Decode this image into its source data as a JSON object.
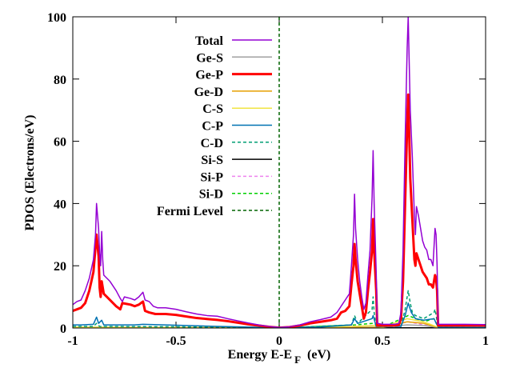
{
  "chart_data": {
    "type": "line",
    "xlabel_main": "Energy E-E",
    "xlabel_sub": "F",
    "xlabel_unit": "(eV)",
    "ylabel": "PDOS (Electrons/eV)",
    "xlim": [
      -1,
      1
    ],
    "ylim": [
      0,
      100
    ],
    "xticks": [
      -1,
      -0.5,
      0,
      0.5,
      1
    ],
    "xtick_labels": [
      "-1",
      "-0.5",
      "0",
      "0.5",
      "1"
    ],
    "yticks": [
      0,
      20,
      40,
      60,
      80,
      100
    ],
    "ytick_labels": [
      "0",
      "20",
      "40",
      "60",
      "80",
      "100"
    ],
    "legend_position": "top-center",
    "fermi_level": 0,
    "series": [
      {
        "name": "Total",
        "color": "#9400d3",
        "width": 1.5,
        "dash": "",
        "points": [
          [
            -1,
            7.5
          ],
          [
            -0.98,
            8.5
          ],
          [
            -0.96,
            9
          ],
          [
            -0.94,
            12
          ],
          [
            -0.92,
            16
          ],
          [
            -0.9,
            22
          ],
          [
            -0.89,
            30
          ],
          [
            -0.885,
            40
          ],
          [
            -0.875,
            32
          ],
          [
            -0.87,
            24
          ],
          [
            -0.865,
            20
          ],
          [
            -0.86,
            31
          ],
          [
            -0.855,
            22
          ],
          [
            -0.85,
            17
          ],
          [
            -0.82,
            15
          ],
          [
            -0.79,
            12
          ],
          [
            -0.77,
            9.5
          ],
          [
            -0.76,
            8.5
          ],
          [
            -0.75,
            10
          ],
          [
            -0.72,
            9.5
          ],
          [
            -0.7,
            9
          ],
          [
            -0.68,
            10
          ],
          [
            -0.66,
            11.5
          ],
          [
            -0.65,
            9
          ],
          [
            -0.63,
            8.5
          ],
          [
            -0.61,
            7
          ],
          [
            -0.59,
            6.5
          ],
          [
            -0.55,
            6.5
          ],
          [
            -0.5,
            6
          ],
          [
            -0.45,
            5.2
          ],
          [
            -0.4,
            4.5
          ],
          [
            -0.35,
            4
          ],
          [
            -0.3,
            3.8
          ],
          [
            -0.25,
            3
          ],
          [
            -0.2,
            2.3
          ],
          [
            -0.15,
            1.6
          ],
          [
            -0.1,
            1
          ],
          [
            -0.05,
            0.5
          ],
          [
            0,
            0.2
          ],
          [
            0.05,
            0.4
          ],
          [
            0.1,
            1
          ],
          [
            0.15,
            2
          ],
          [
            0.2,
            2.7
          ],
          [
            0.25,
            3.5
          ],
          [
            0.28,
            5
          ],
          [
            0.3,
            7
          ],
          [
            0.32,
            9
          ],
          [
            0.34,
            11
          ],
          [
            0.35,
            20
          ],
          [
            0.36,
            30
          ],
          [
            0.365,
            43
          ],
          [
            0.37,
            32
          ],
          [
            0.38,
            22
          ],
          [
            0.39,
            15
          ],
          [
            0.4,
            10
          ],
          [
            0.41,
            6
          ],
          [
            0.42,
            8
          ],
          [
            0.43,
            17
          ],
          [
            0.44,
            25
          ],
          [
            0.45,
            42
          ],
          [
            0.455,
            57
          ],
          [
            0.46,
            40
          ],
          [
            0.47,
            18
          ],
          [
            0.475,
            1.5
          ],
          [
            0.5,
            1.2
          ],
          [
            0.56,
            1.2
          ],
          [
            0.58,
            1.5
          ],
          [
            0.59,
            5
          ],
          [
            0.6,
            25
          ],
          [
            0.61,
            60
          ],
          [
            0.62,
            90
          ],
          [
            0.625,
            100
          ],
          [
            0.63,
            85
          ],
          [
            0.635,
            70
          ],
          [
            0.645,
            55
          ],
          [
            0.655,
            36
          ],
          [
            0.66,
            30
          ],
          [
            0.665,
            39
          ],
          [
            0.675,
            36
          ],
          [
            0.685,
            32
          ],
          [
            0.695,
            28
          ],
          [
            0.705,
            26
          ],
          [
            0.715,
            25
          ],
          [
            0.725,
            22
          ],
          [
            0.735,
            22
          ],
          [
            0.745,
            20
          ],
          [
            0.75,
            26
          ],
          [
            0.755,
            32
          ],
          [
            0.76,
            30
          ],
          [
            0.765,
            20
          ],
          [
            0.77,
            1.2
          ],
          [
            0.8,
            1.2
          ],
          [
            0.9,
            1.2
          ],
          [
            1,
            1.1
          ]
        ]
      },
      {
        "name": "Ge-S",
        "color": "#a0a0a0",
        "width": 1.5,
        "dash": "",
        "points": [
          [
            -1,
            0.3
          ],
          [
            -0.5,
            0.2
          ],
          [
            0,
            0
          ],
          [
            0.5,
            0.3
          ],
          [
            0.62,
            1
          ],
          [
            0.7,
            0.8
          ],
          [
            0.77,
            0.2
          ],
          [
            1,
            0.1
          ]
        ]
      },
      {
        "name": "Ge-P",
        "color": "#ff0000",
        "width": 3,
        "dash": "",
        "points": [
          [
            -1,
            5.5
          ],
          [
            -0.98,
            6
          ],
          [
            -0.96,
            6.5
          ],
          [
            -0.94,
            8
          ],
          [
            -0.92,
            12
          ],
          [
            -0.9,
            18
          ],
          [
            -0.89,
            26
          ],
          [
            -0.885,
            30
          ],
          [
            -0.875,
            23
          ],
          [
            -0.87,
            13
          ],
          [
            -0.865,
            10
          ],
          [
            -0.86,
            15
          ],
          [
            -0.855,
            13
          ],
          [
            -0.85,
            11
          ],
          [
            -0.82,
            9
          ],
          [
            -0.79,
            7
          ],
          [
            -0.78,
            6.5
          ],
          [
            -0.77,
            6
          ],
          [
            -0.76,
            8
          ],
          [
            -0.72,
            7.5
          ],
          [
            -0.7,
            7
          ],
          [
            -0.68,
            7.5
          ],
          [
            -0.66,
            8.5
          ],
          [
            -0.65,
            5.5
          ],
          [
            -0.63,
            5
          ],
          [
            -0.6,
            4.5
          ],
          [
            -0.55,
            4.5
          ],
          [
            -0.5,
            4.2
          ],
          [
            -0.45,
            3.7
          ],
          [
            -0.4,
            3.2
          ],
          [
            -0.35,
            2.9
          ],
          [
            -0.3,
            2.6
          ],
          [
            -0.25,
            2.2
          ],
          [
            -0.2,
            1.7
          ],
          [
            -0.15,
            1.2
          ],
          [
            -0.1,
            0.8
          ],
          [
            -0.05,
            0.4
          ],
          [
            0,
            0.1
          ],
          [
            0.05,
            0.3
          ],
          [
            0.1,
            0.8
          ],
          [
            0.15,
            1.5
          ],
          [
            0.2,
            2
          ],
          [
            0.25,
            2.5
          ],
          [
            0.28,
            3
          ],
          [
            0.3,
            5
          ],
          [
            0.32,
            5.5
          ],
          [
            0.34,
            7
          ],
          [
            0.35,
            14
          ],
          [
            0.36,
            20
          ],
          [
            0.365,
            27
          ],
          [
            0.37,
            22
          ],
          [
            0.38,
            15
          ],
          [
            0.39,
            11
          ],
          [
            0.4,
            7
          ],
          [
            0.41,
            3
          ],
          [
            0.42,
            5
          ],
          [
            0.43,
            12
          ],
          [
            0.44,
            18
          ],
          [
            0.45,
            25
          ],
          [
            0.455,
            35
          ],
          [
            0.46,
            25
          ],
          [
            0.47,
            12
          ],
          [
            0.475,
            0.8
          ],
          [
            0.5,
            0.8
          ],
          [
            0.56,
            0.8
          ],
          [
            0.58,
            1
          ],
          [
            0.59,
            3
          ],
          [
            0.6,
            15
          ],
          [
            0.61,
            40
          ],
          [
            0.62,
            65
          ],
          [
            0.625,
            75
          ],
          [
            0.63,
            62
          ],
          [
            0.635,
            48
          ],
          [
            0.645,
            35
          ],
          [
            0.655,
            22
          ],
          [
            0.66,
            20
          ],
          [
            0.665,
            24
          ],
          [
            0.675,
            22
          ],
          [
            0.685,
            20
          ],
          [
            0.695,
            18
          ],
          [
            0.705,
            17
          ],
          [
            0.715,
            16
          ],
          [
            0.725,
            14
          ],
          [
            0.735,
            14
          ],
          [
            0.745,
            13
          ],
          [
            0.75,
            15
          ],
          [
            0.755,
            17
          ],
          [
            0.76,
            16
          ],
          [
            0.765,
            12
          ],
          [
            0.77,
            0.8
          ],
          [
            0.8,
            0.8
          ],
          [
            0.9,
            0.8
          ],
          [
            1,
            0.8
          ]
        ]
      },
      {
        "name": "Ge-D",
        "color": "#e69f00",
        "width": 1.5,
        "dash": "",
        "points": [
          [
            -1,
            0.2
          ],
          [
            -0.5,
            0.2
          ],
          [
            0,
            0
          ],
          [
            0.5,
            0.2
          ],
          [
            0.62,
            2
          ],
          [
            0.7,
            1.5
          ],
          [
            0.77,
            0.2
          ],
          [
            1,
            0.1
          ]
        ]
      },
      {
        "name": "C-S",
        "color": "#f0e442",
        "width": 1.5,
        "dash": "",
        "points": [
          [
            -1,
            0.3
          ],
          [
            -0.5,
            0.2
          ],
          [
            0,
            0
          ],
          [
            0.36,
            0.5
          ],
          [
            0.46,
            0.8
          ],
          [
            0.5,
            0.2
          ],
          [
            0.62,
            3
          ],
          [
            0.7,
            2
          ],
          [
            0.77,
            0.2
          ],
          [
            1,
            0.1
          ]
        ]
      },
      {
        "name": "C-P",
        "color": "#0072b2",
        "width": 1.5,
        "dash": "",
        "points": [
          [
            -1,
            1
          ],
          [
            -0.96,
            1
          ],
          [
            -0.9,
            1.2
          ],
          [
            -0.885,
            3.5
          ],
          [
            -0.875,
            1.5
          ],
          [
            -0.86,
            2.5
          ],
          [
            -0.85,
            1
          ],
          [
            -0.7,
            1
          ],
          [
            -0.66,
            1.2
          ],
          [
            -0.5,
            0.9
          ],
          [
            -0.3,
            0.5
          ],
          [
            0,
            0.1
          ],
          [
            0.2,
            0.3
          ],
          [
            0.35,
            1
          ],
          [
            0.365,
            3
          ],
          [
            0.38,
            1.5
          ],
          [
            0.45,
            3
          ],
          [
            0.455,
            4
          ],
          [
            0.47,
            0.5
          ],
          [
            0.59,
            0.5
          ],
          [
            0.61,
            4
          ],
          [
            0.625,
            8
          ],
          [
            0.64,
            5
          ],
          [
            0.66,
            3
          ],
          [
            0.7,
            2.5
          ],
          [
            0.75,
            3
          ],
          [
            0.77,
            0.3
          ],
          [
            1,
            0.2
          ]
        ]
      },
      {
        "name": "C-D",
        "color": "#009e73",
        "width": 1.5,
        "dash": "4,3",
        "points": [
          [
            -1,
            0.5
          ],
          [
            -0.9,
            0.5
          ],
          [
            -0.885,
            1.5
          ],
          [
            -0.87,
            0.5
          ],
          [
            -0.5,
            0.4
          ],
          [
            0,
            0
          ],
          [
            0.35,
            1
          ],
          [
            0.365,
            4
          ],
          [
            0.38,
            1.5
          ],
          [
            0.45,
            6
          ],
          [
            0.455,
            10
          ],
          [
            0.46,
            5
          ],
          [
            0.47,
            0.5
          ],
          [
            0.59,
            0.5
          ],
          [
            0.61,
            6
          ],
          [
            0.625,
            12
          ],
          [
            0.635,
            8
          ],
          [
            0.645,
            5
          ],
          [
            0.66,
            4
          ],
          [
            0.7,
            3
          ],
          [
            0.75,
            5
          ],
          [
            0.755,
            6
          ],
          [
            0.77,
            0.3
          ],
          [
            1,
            0.2
          ]
        ]
      },
      {
        "name": "Si-S",
        "color": "#000000",
        "width": 1.5,
        "dash": "",
        "points": [
          [
            -1,
            0.1
          ],
          [
            0,
            0
          ],
          [
            1,
            0.1
          ]
        ]
      },
      {
        "name": "Si-P",
        "color": "#ee82ee",
        "width": 1.5,
        "dash": "4,3",
        "points": [
          [
            -1,
            0.2
          ],
          [
            -0.5,
            0.2
          ],
          [
            0,
            0
          ],
          [
            0.365,
            0.6
          ],
          [
            0.455,
            0.8
          ],
          [
            0.5,
            0.2
          ],
          [
            0.625,
            2
          ],
          [
            0.7,
            1
          ],
          [
            0.77,
            0.2
          ],
          [
            1,
            0.1
          ]
        ]
      },
      {
        "name": "Si-D",
        "color": "#00d000",
        "width": 1.5,
        "dash": "4,3",
        "points": [
          [
            -1,
            0.2
          ],
          [
            -0.5,
            0.2
          ],
          [
            0,
            0
          ],
          [
            0.365,
            1
          ],
          [
            0.455,
            1.5
          ],
          [
            0.5,
            0.2
          ],
          [
            0.625,
            4
          ],
          [
            0.7,
            2
          ],
          [
            0.75,
            3
          ],
          [
            0.77,
            0.2
          ],
          [
            1,
            0.1
          ]
        ]
      },
      {
        "name": "Fermi Level",
        "color": "#006400",
        "width": 1.5,
        "dash": "4,3",
        "points": [
          [
            0,
            0
          ],
          [
            0,
            100
          ]
        ]
      }
    ]
  }
}
